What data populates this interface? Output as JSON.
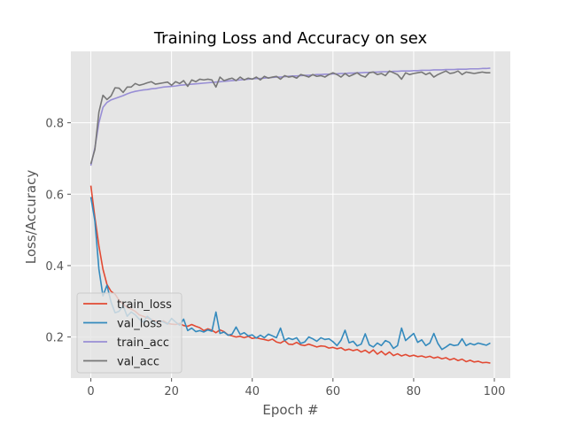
{
  "chart_data": {
    "type": "line",
    "title": "Training Loss and Accuracy on sex",
    "xlabel": "Epoch #",
    "ylabel": "Loss/Accuracy",
    "xlim": [
      -4.95,
      103.95
    ],
    "ylim": [
      0.085,
      1.0
    ],
    "xticks": [
      0,
      20,
      40,
      60,
      80,
      100
    ],
    "yticks": [
      0.2,
      0.4,
      0.6,
      0.8
    ],
    "ytick_labels": [
      "0.2",
      "0.4",
      "0.6",
      "0.8"
    ],
    "grid": true,
    "background": "#e5e5e5",
    "legend_position": "lower-left",
    "series": [
      {
        "name": "train_loss",
        "color": "#e24a33",
        "values": [
          0.624,
          0.535,
          0.455,
          0.39,
          0.347,
          0.328,
          0.32,
          0.303,
          0.292,
          0.283,
          0.278,
          0.272,
          0.262,
          0.258,
          0.254,
          0.249,
          0.245,
          0.242,
          0.245,
          0.238,
          0.236,
          0.235,
          0.238,
          0.232,
          0.23,
          0.235,
          0.23,
          0.226,
          0.218,
          0.223,
          0.219,
          0.212,
          0.22,
          0.215,
          0.206,
          0.203,
          0.2,
          0.202,
          0.198,
          0.202,
          0.196,
          0.198,
          0.195,
          0.193,
          0.19,
          0.194,
          0.186,
          0.183,
          0.19,
          0.18,
          0.179,
          0.185,
          0.178,
          0.176,
          0.18,
          0.176,
          0.172,
          0.175,
          0.174,
          0.169,
          0.171,
          0.167,
          0.17,
          0.163,
          0.166,
          0.162,
          0.165,
          0.158,
          0.163,
          0.155,
          0.164,
          0.152,
          0.16,
          0.15,
          0.158,
          0.148,
          0.153,
          0.147,
          0.151,
          0.146,
          0.149,
          0.145,
          0.147,
          0.143,
          0.146,
          0.141,
          0.144,
          0.139,
          0.142,
          0.136,
          0.14,
          0.134,
          0.138,
          0.131,
          0.135,
          0.13,
          0.132,
          0.128,
          0.129,
          0.127
        ]
      },
      {
        "name": "val_loss",
        "color": "#348abd",
        "values": [
          0.592,
          0.525,
          0.39,
          0.315,
          0.345,
          0.298,
          0.268,
          0.272,
          0.288,
          0.258,
          0.27,
          0.262,
          0.25,
          0.242,
          0.258,
          0.248,
          0.239,
          0.246,
          0.242,
          0.236,
          0.252,
          0.242,
          0.233,
          0.25,
          0.218,
          0.225,
          0.215,
          0.218,
          0.214,
          0.22,
          0.216,
          0.27,
          0.21,
          0.214,
          0.205,
          0.208,
          0.228,
          0.207,
          0.212,
          0.203,
          0.206,
          0.197,
          0.205,
          0.198,
          0.208,
          0.203,
          0.198,
          0.225,
          0.19,
          0.197,
          0.193,
          0.198,
          0.182,
          0.186,
          0.2,
          0.195,
          0.188,
          0.198,
          0.193,
          0.195,
          0.187,
          0.176,
          0.191,
          0.219,
          0.184,
          0.188,
          0.175,
          0.18,
          0.209,
          0.178,
          0.172,
          0.183,
          0.176,
          0.19,
          0.185,
          0.168,
          0.176,
          0.225,
          0.19,
          0.2,
          0.21,
          0.185,
          0.192,
          0.176,
          0.183,
          0.21,
          0.182,
          0.165,
          0.172,
          0.18,
          0.176,
          0.178,
          0.195,
          0.176,
          0.182,
          0.178,
          0.183,
          0.18,
          0.177,
          0.183
        ]
      },
      {
        "name": "train_acc",
        "color": "#988ed5",
        "values": [
          0.68,
          0.73,
          0.8,
          0.843,
          0.857,
          0.864,
          0.868,
          0.872,
          0.876,
          0.881,
          0.885,
          0.888,
          0.89,
          0.892,
          0.893,
          0.895,
          0.896,
          0.898,
          0.9,
          0.901,
          0.902,
          0.903,
          0.905,
          0.906,
          0.907,
          0.908,
          0.909,
          0.91,
          0.911,
          0.912,
          0.913,
          0.914,
          0.915,
          0.916,
          0.917,
          0.918,
          0.919,
          0.92,
          0.921,
          0.922,
          0.923,
          0.924,
          0.924,
          0.925,
          0.926,
          0.927,
          0.928,
          0.928,
          0.929,
          0.93,
          0.931,
          0.931,
          0.932,
          0.933,
          0.933,
          0.934,
          0.935,
          0.935,
          0.936,
          0.936,
          0.937,
          0.937,
          0.938,
          0.938,
          0.939,
          0.939,
          0.94,
          0.94,
          0.941,
          0.941,
          0.942,
          0.942,
          0.943,
          0.943,
          0.943,
          0.944,
          0.944,
          0.945,
          0.945,
          0.945,
          0.946,
          0.946,
          0.947,
          0.947,
          0.947,
          0.948,
          0.948,
          0.948,
          0.949,
          0.949,
          0.949,
          0.95,
          0.95,
          0.95,
          0.951,
          0.951,
          0.951,
          0.952,
          0.952,
          0.953
        ]
      },
      {
        "name": "val_acc",
        "color": "#777777",
        "values": [
          0.685,
          0.725,
          0.83,
          0.877,
          0.865,
          0.875,
          0.898,
          0.897,
          0.885,
          0.9,
          0.9,
          0.91,
          0.905,
          0.908,
          0.912,
          0.915,
          0.908,
          0.91,
          0.912,
          0.914,
          0.905,
          0.915,
          0.91,
          0.918,
          0.902,
          0.92,
          0.915,
          0.922,
          0.92,
          0.922,
          0.92,
          0.9,
          0.928,
          0.918,
          0.922,
          0.925,
          0.918,
          0.928,
          0.92,
          0.925,
          0.922,
          0.928,
          0.92,
          0.93,
          0.925,
          0.928,
          0.93,
          0.922,
          0.932,
          0.928,
          0.93,
          0.925,
          0.935,
          0.932,
          0.928,
          0.935,
          0.93,
          0.932,
          0.928,
          0.935,
          0.94,
          0.935,
          0.928,
          0.938,
          0.93,
          0.935,
          0.94,
          0.932,
          0.928,
          0.94,
          0.942,
          0.935,
          0.938,
          0.932,
          0.945,
          0.94,
          0.935,
          0.922,
          0.94,
          0.935,
          0.938,
          0.94,
          0.942,
          0.935,
          0.94,
          0.928,
          0.935,
          0.94,
          0.945,
          0.938,
          0.94,
          0.945,
          0.935,
          0.942,
          0.94,
          0.938,
          0.94,
          0.942,
          0.94,
          0.94
        ]
      }
    ]
  }
}
